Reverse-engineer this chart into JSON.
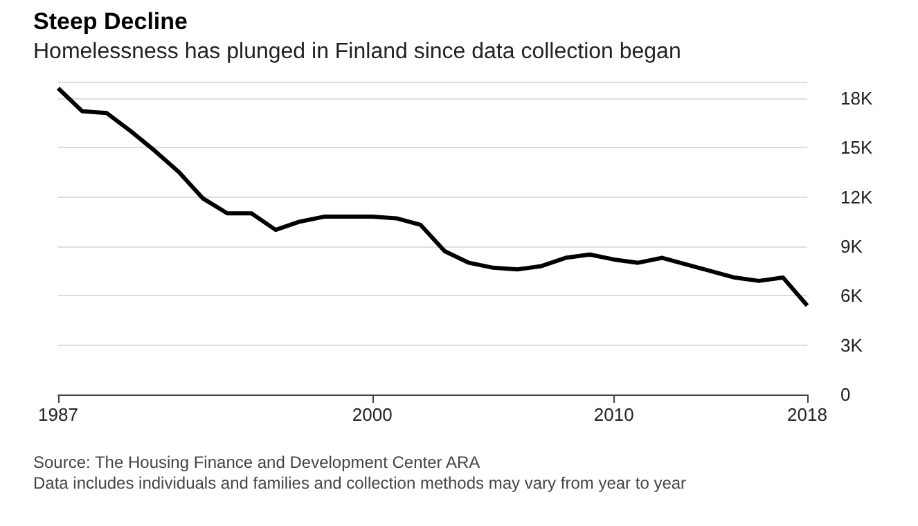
{
  "chart_data": {
    "type": "line",
    "title": "Steep Decline",
    "subtitle": "Homelessness has plunged in Finland since data collection began",
    "x": [
      1987,
      1988,
      1989,
      1990,
      1991,
      1992,
      1993,
      1994,
      1995,
      1996,
      1997,
      1998,
      1999,
      2000,
      2001,
      2002,
      2003,
      2004,
      2005,
      2006,
      2007,
      2008,
      2009,
      2010,
      2011,
      2012,
      2013,
      2014,
      2015,
      2016,
      2017,
      2018
    ],
    "values": [
      18600,
      17200,
      17100,
      16000,
      14800,
      13500,
      11900,
      11000,
      11000,
      10000,
      10500,
      10800,
      10800,
      10800,
      10700,
      10300,
      8700,
      8000,
      7700,
      7600,
      7800,
      8300,
      8500,
      8200,
      8000,
      8300,
      7900,
      7500,
      7100,
      6900,
      7100,
      5400
    ],
    "color": "#000000",
    "xlim": [
      1987,
      2018
    ],
    "xticks": [
      1987,
      2000,
      2010,
      2018
    ],
    "ylim": [
      0,
      19000
    ],
    "yticks": [
      {
        "value": 0,
        "label": "0"
      },
      {
        "value": 3000,
        "label": "3K"
      },
      {
        "value": 6000,
        "label": "6K"
      },
      {
        "value": 9000,
        "label": "9K"
      },
      {
        "value": 12000,
        "label": "12K"
      },
      {
        "value": 15000,
        "label": "15K"
      },
      {
        "value": 18000,
        "label": "18K"
      }
    ],
    "grid": "y",
    "marker": "none",
    "line_style": "solid",
    "annotations": [
      "Source: The Housing Finance and Development Center ARA",
      "Data includes individuals and families and collection methods may vary from year to year"
    ]
  }
}
